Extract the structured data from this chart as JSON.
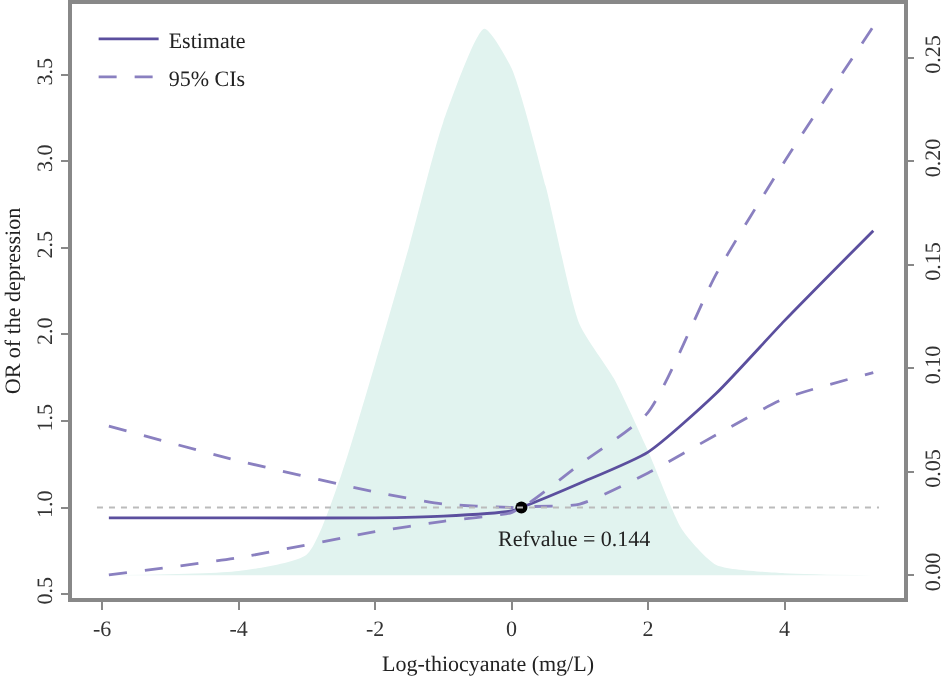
{
  "chart_data": {
    "type": "line",
    "xlabel": "Log-thiocyanate (mg/L)",
    "ylabel": "OR of the depression",
    "xlim": [
      -6.44,
      5.75
    ],
    "xticks": [
      -6,
      -4,
      -2,
      0,
      2,
      4
    ],
    "ylim": [
      0.477,
      3.91
    ],
    "yticks": [
      0.5,
      {
        "value": 1,
        "label": "1.0"
      },
      1.5,
      {
        "value": 2,
        "label": "2.0"
      },
      2.5,
      {
        "value": 3,
        "label": "3.0"
      },
      3.5
    ],
    "y2lim": [
      -0.011,
      0.276
    ],
    "y2ticks": [
      {
        "value": 0,
        "label": "0.00"
      },
      0.05,
      {
        "value": 0.1,
        "label": "0.10"
      },
      0.15,
      {
        "value": 0.2,
        "label": "0.20"
      },
      0.25
    ],
    "series": [
      {
        "type": "area",
        "axis": "y2",
        "color": "#e1f3ef",
        "x": [
          -5.9,
          -4,
          -3,
          -2.5,
          -2,
          -1.5,
          -1,
          -0.4,
          0,
          0.5,
          1,
          1.5,
          2,
          2.5,
          3,
          4,
          5.3
        ],
        "values": [
          0,
          0.002,
          0.01,
          0.048,
          0.102,
          0.159,
          0.219,
          0.264,
          0.245,
          0.188,
          0.121,
          0.095,
          0.06,
          0.022,
          0.005,
          0.001,
          0
        ]
      },
      {
        "name": "Estimate",
        "color": "#5b4f9e",
        "line_style": "solid",
        "x": [
          -5.9,
          -4,
          -2,
          -1,
          0,
          0.144,
          1,
          2,
          3,
          4,
          5.3
        ],
        "values": [
          0.94,
          0.94,
          0.94,
          0.95,
          0.98,
          1.0,
          1.14,
          1.32,
          1.66,
          2.08,
          2.6
        ]
      },
      {
        "name": "95% CIs",
        "color": "#8a80c0",
        "line_style": "dashed",
        "x": [
          -5.9,
          -4,
          -2,
          -1,
          0,
          0.144,
          1,
          2,
          3,
          4,
          5.3
        ],
        "values": [
          1.47,
          1.27,
          1.09,
          1.02,
          1.0,
          1.0,
          1.25,
          1.55,
          2.35,
          3.0,
          3.78
        ]
      },
      {
        "color": "#8a80c0",
        "line_style": "dashed",
        "x": [
          -5.9,
          -4,
          -2,
          -1,
          0,
          0.144,
          1,
          2,
          3,
          4,
          5.3
        ],
        "values": [
          0.61,
          0.71,
          0.86,
          0.92,
          0.97,
          1.0,
          1.02,
          1.2,
          1.42,
          1.63,
          1.78
        ]
      },
      {
        "type": "scatter",
        "marker": "circle",
        "color": "#000000",
        "x": [
          0.144
        ],
        "values": [
          1.0
        ]
      }
    ],
    "ref_lines": [
      {
        "axis": "y",
        "value": 1.0,
        "line_style": "dotted",
        "color": "#bbbbbb"
      }
    ],
    "annotations": [
      {
        "text": "Refvalue = 0.144",
        "x": 0.144,
        "y": 1.0
      }
    ],
    "grid": false,
    "legend": "top left"
  }
}
